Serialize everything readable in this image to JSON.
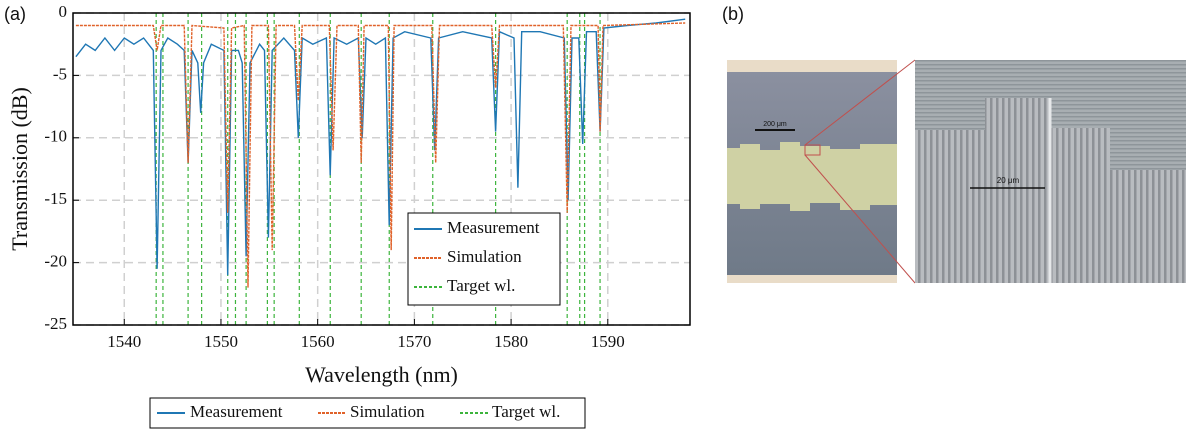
{
  "chart_data": {
    "type": "line",
    "panel_label": "(a)",
    "x_label": "Wavelength (nm)",
    "y_label": "Transmission (dB)",
    "xlim": [
      1534.7,
      1598.5
    ],
    "ylim": [
      -25,
      0
    ],
    "xticks": [
      1540,
      1550,
      1560,
      1570,
      1580,
      1590
    ],
    "yticks": [
      0,
      -5,
      -10,
      -15,
      -20,
      -25
    ],
    "grid": true,
    "legend": "lower right",
    "series": [
      {
        "name": "Measurement",
        "color": "#1f77b4",
        "x": [
          1535,
          1536,
          1537,
          1538,
          1539,
          1540,
          1541,
          1542,
          1543,
          1543.4,
          1543.8,
          1544.5,
          1545.5,
          1546.2,
          1546.6,
          1547,
          1547.6,
          1547.9,
          1548.2,
          1549,
          1550.3,
          1550.7,
          1551.1,
          1551.8,
          1552.2,
          1552.6,
          1553,
          1554,
          1554.5,
          1554.9,
          1555.3,
          1556.5,
          1557.6,
          1558,
          1558.4,
          1559.5,
          1560.9,
          1561.3,
          1561.7,
          1563,
          1564.2,
          1564.6,
          1565,
          1566,
          1567,
          1567.4,
          1567.8,
          1569,
          1571.7,
          1572.1,
          1572.5,
          1575,
          1578,
          1578.4,
          1578.8,
          1580.3,
          1580.7,
          1581.1,
          1583,
          1585.5,
          1585.9,
          1586.3,
          1587,
          1587.4,
          1587.8,
          1588.8,
          1589.2,
          1589.6,
          1592,
          1595,
          1598
        ],
        "values": [
          -3.5,
          -2.5,
          -3,
          -2,
          -3,
          -2,
          -2.5,
          -2,
          -3,
          -20.5,
          -3,
          -2,
          -2.5,
          -3,
          -12,
          -3,
          -4,
          -8,
          -4,
          -2.5,
          -3,
          -21,
          -3,
          -3,
          -4,
          -19.5,
          -4,
          -2.5,
          -3,
          -18,
          -3,
          -2,
          -3,
          -10,
          -2,
          -2.5,
          -2,
          -13,
          -2,
          -2.5,
          -2,
          -10,
          -2,
          -2.5,
          -2,
          -17,
          -2,
          -1.5,
          -2,
          -11,
          -2,
          -1.5,
          -2,
          -9.5,
          -1.5,
          -2,
          -14,
          -1.5,
          -1.5,
          -2,
          -15,
          -2,
          -2,
          -10.5,
          -1.5,
          -1.5,
          -9.5,
          -1.2,
          -1,
          -0.8,
          -0.5
        ]
      },
      {
        "name": "Simulation",
        "color": "#e0622a",
        "x": [
          1535,
          1543,
          1543.4,
          1543.8,
          1546.2,
          1546.6,
          1547,
          1550.3,
          1550.7,
          1551.1,
          1552.4,
          1552.8,
          1553.2,
          1554.9,
          1555.3,
          1555.7,
          1557.6,
          1558,
          1558.4,
          1561.2,
          1561.6,
          1562,
          1564.2,
          1564.5,
          1564.8,
          1567.3,
          1567.6,
          1567.9,
          1571.8,
          1572.2,
          1572.6,
          1578,
          1578.4,
          1578.8,
          1585.4,
          1585.8,
          1586.2,
          1589,
          1589.2,
          1589.5,
          1598
        ],
        "values": [
          -1,
          -1,
          -3,
          -1,
          -1,
          -12,
          -1,
          -1.2,
          -16,
          -1.2,
          -1,
          -22,
          -1,
          -1,
          -19,
          -1,
          -1,
          -7,
          -1,
          -1,
          -11,
          -1,
          -1,
          -12,
          -1,
          -1,
          -19,
          -1,
          -1,
          -12,
          -1,
          -1,
          -6,
          -1,
          -1,
          -16,
          -1,
          -1,
          -9.5,
          -1,
          -0.8
        ]
      }
    ],
    "vlines": {
      "name": "Target wl.",
      "color": "#3cb43c",
      "x": [
        1543.3,
        1544.0,
        1546.6,
        1548.0,
        1550.7,
        1551.5,
        1552.6,
        1554.8,
        1555.5,
        1558.1,
        1561.3,
        1564.5,
        1567.4,
        1571.9,
        1578.4,
        1585.8,
        1587.1,
        1587.6,
        1589.2
      ]
    }
  },
  "panel_b": {
    "label": "(b)",
    "scale_bars": [
      "200 μm",
      "20 μm"
    ]
  }
}
